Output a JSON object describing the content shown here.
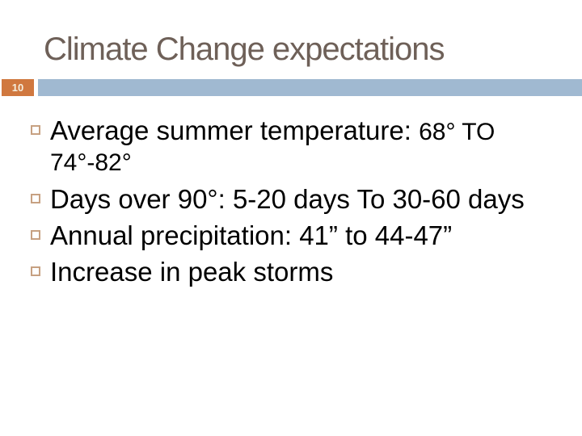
{
  "title": "Climate Change expectations",
  "page_number": "10",
  "colors": {
    "title_text": "#6e6058",
    "accent_orange": "#d0783f",
    "accent_blue": "#a0b9d1",
    "bullet_outline": "#c7a182",
    "body_text": "#000000",
    "page_number_text": "#f5eedd",
    "background": "#ffffff"
  },
  "bullets": [
    {
      "segments": [
        {
          "text": "Average summer temperature: ",
          "size": "normal"
        },
        {
          "text": "68° TO 74°-82°",
          "size": "small"
        }
      ]
    },
    {
      "segments": [
        {
          "text": "Days over 90°: 5-20 days To 30-60 days",
          "size": "normal"
        }
      ]
    },
    {
      "segments": [
        {
          "text": "Annual precipitation: 41” to 44-47”",
          "size": "normal"
        }
      ]
    },
    {
      "segments": [
        {
          "text": "Increase in peak storms",
          "size": "normal"
        }
      ]
    }
  ]
}
